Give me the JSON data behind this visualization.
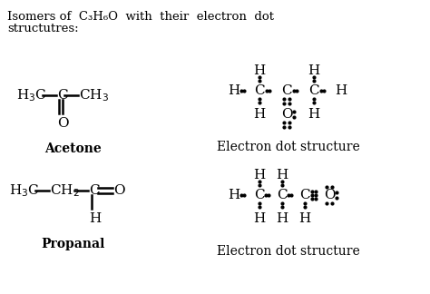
{
  "bg_color": "#ffffff",
  "acetone_label": "Acetone",
  "propanal_label": "Propanal",
  "eds_label1": "Electron dot structure",
  "eds_label2": "Electron dot structure",
  "title_line1": "Isomers of  C₃H₆O  with  their  electron  dot",
  "title_line2": "structutres:",
  "fs_title": 9.5,
  "fs_chem": 11,
  "fs_label": 10
}
